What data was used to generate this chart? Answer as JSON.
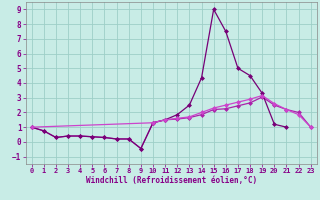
{
  "xlabel": "Windchill (Refroidissement éolien,°C)",
  "background_color": "#c8ece6",
  "grid_color": "#9ecfc7",
  "xlim": [
    -0.5,
    23.5
  ],
  "ylim": [
    -1.5,
    9.5
  ],
  "yticks": [
    -1,
    0,
    1,
    2,
    3,
    4,
    5,
    6,
    7,
    8,
    9
  ],
  "xticks": [
    0,
    1,
    2,
    3,
    4,
    5,
    6,
    7,
    8,
    9,
    10,
    11,
    12,
    13,
    14,
    15,
    16,
    17,
    18,
    19,
    20,
    21,
    22,
    23
  ],
  "series": [
    {
      "x": [
        0,
        1,
        2,
        3,
        4,
        5,
        6,
        7,
        8,
        9,
        10,
        11,
        12,
        13,
        14,
        15,
        16,
        17,
        18,
        19,
        20,
        21,
        22,
        23
      ],
      "y": [
        1.0,
        0.75,
        0.3,
        0.4,
        0.4,
        0.35,
        0.3,
        0.2,
        0.2,
        -0.45,
        1.3,
        1.5,
        1.55,
        1.65,
        1.85,
        2.2,
        2.25,
        2.45,
        2.65,
        3.05,
        2.5,
        2.2,
        2.0,
        1.0
      ],
      "color": "#aa22aa",
      "lw": 0.9,
      "ms": 2.5
    },
    {
      "x": [
        0,
        1,
        2,
        3,
        4,
        5,
        6,
        7,
        8,
        9,
        10,
        11,
        12,
        13,
        14,
        15,
        16,
        17,
        18,
        19,
        20,
        21
      ],
      "y": [
        1.0,
        0.75,
        0.3,
        0.4,
        0.4,
        0.35,
        0.3,
        0.2,
        0.2,
        -0.45,
        1.3,
        1.5,
        1.85,
        2.5,
        4.35,
        9.0,
        7.5,
        5.0,
        4.5,
        3.3,
        1.2,
        1.0
      ],
      "color": "#770077",
      "lw": 0.9,
      "ms": 2.5
    },
    {
      "x": [
        0,
        10,
        11,
        12,
        13,
        14,
        15,
        16,
        17,
        18,
        19,
        20,
        21,
        22,
        23
      ],
      "y": [
        1.0,
        1.3,
        1.5,
        1.6,
        1.7,
        2.0,
        2.3,
        2.5,
        2.7,
        2.9,
        3.15,
        2.6,
        2.2,
        1.85,
        1.0
      ],
      "color": "#cc44cc",
      "lw": 0.9,
      "ms": 2.5
    }
  ]
}
